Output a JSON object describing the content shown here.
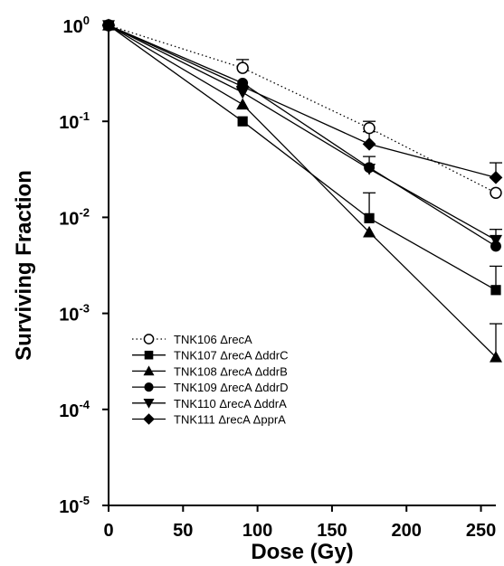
{
  "chart_data": {
    "type": "line",
    "title": "",
    "xlabel": "Dose (Gy)",
    "ylabel": "Surviving Fraction",
    "y_scale": "log",
    "xlim": [
      0,
      260
    ],
    "ylim": [
      1e-05,
      1
    ],
    "x_ticks": [
      0,
      50,
      100,
      150,
      200,
      250
    ],
    "x_tick_labels": [
      "0",
      "50",
      "100",
      "150",
      "200",
      "250"
    ],
    "y_ticks": [
      1,
      0.1,
      0.01,
      0.001,
      0.0001,
      1e-05
    ],
    "y_tick_labels": [
      {
        "base": "10",
        "exp": "0"
      },
      {
        "base": "10",
        "exp": "-1"
      },
      {
        "base": "10",
        "exp": "-2"
      },
      {
        "base": "10",
        "exp": "-3"
      },
      {
        "base": "10",
        "exp": "-4"
      },
      {
        "base": "10",
        "exp": "-5"
      }
    ],
    "grid": false,
    "legend_position": "lower-left",
    "x": [
      0,
      90,
      175,
      260
    ],
    "series": [
      {
        "name": "TNK106 ΔrecA",
        "marker": "circle-open",
        "line": "dotted",
        "values": [
          1,
          0.36,
          0.085,
          0.018
        ],
        "err_up": [
          null,
          0.44,
          0.1,
          null
        ]
      },
      {
        "name": "TNK107 ΔrecA ΔddrC",
        "marker": "square",
        "line": "solid",
        "values": [
          1,
          0.1,
          0.0098,
          0.00175
        ],
        "err_up": [
          null,
          null,
          0.018,
          0.0031
        ]
      },
      {
        "name": "TNK108 ΔrecA ΔddrB",
        "marker": "triangle-up",
        "line": "solid",
        "values": [
          1,
          0.15,
          0.007,
          0.00035
        ],
        "err_up": [
          null,
          null,
          null,
          0.00078
        ]
      },
      {
        "name": "TNK109 ΔrecA ΔddrD",
        "marker": "circle",
        "line": "solid",
        "values": [
          1,
          0.25,
          0.033,
          0.005
        ],
        "err_up": [
          null,
          null,
          0.043,
          0.0075
        ]
      },
      {
        "name": "TNK110 ΔrecA ΔddrA",
        "marker": "triangle-down",
        "line": "solid",
        "values": [
          1,
          0.2,
          0.032,
          0.0058
        ],
        "err_up": [
          null,
          null,
          null,
          null
        ]
      },
      {
        "name": "TNK111 ΔrecA ΔpprA",
        "marker": "diamond",
        "line": "solid",
        "values": [
          1,
          0.23,
          0.058,
          0.026
        ],
        "err_up": [
          null,
          null,
          0.078,
          0.037
        ]
      }
    ]
  }
}
